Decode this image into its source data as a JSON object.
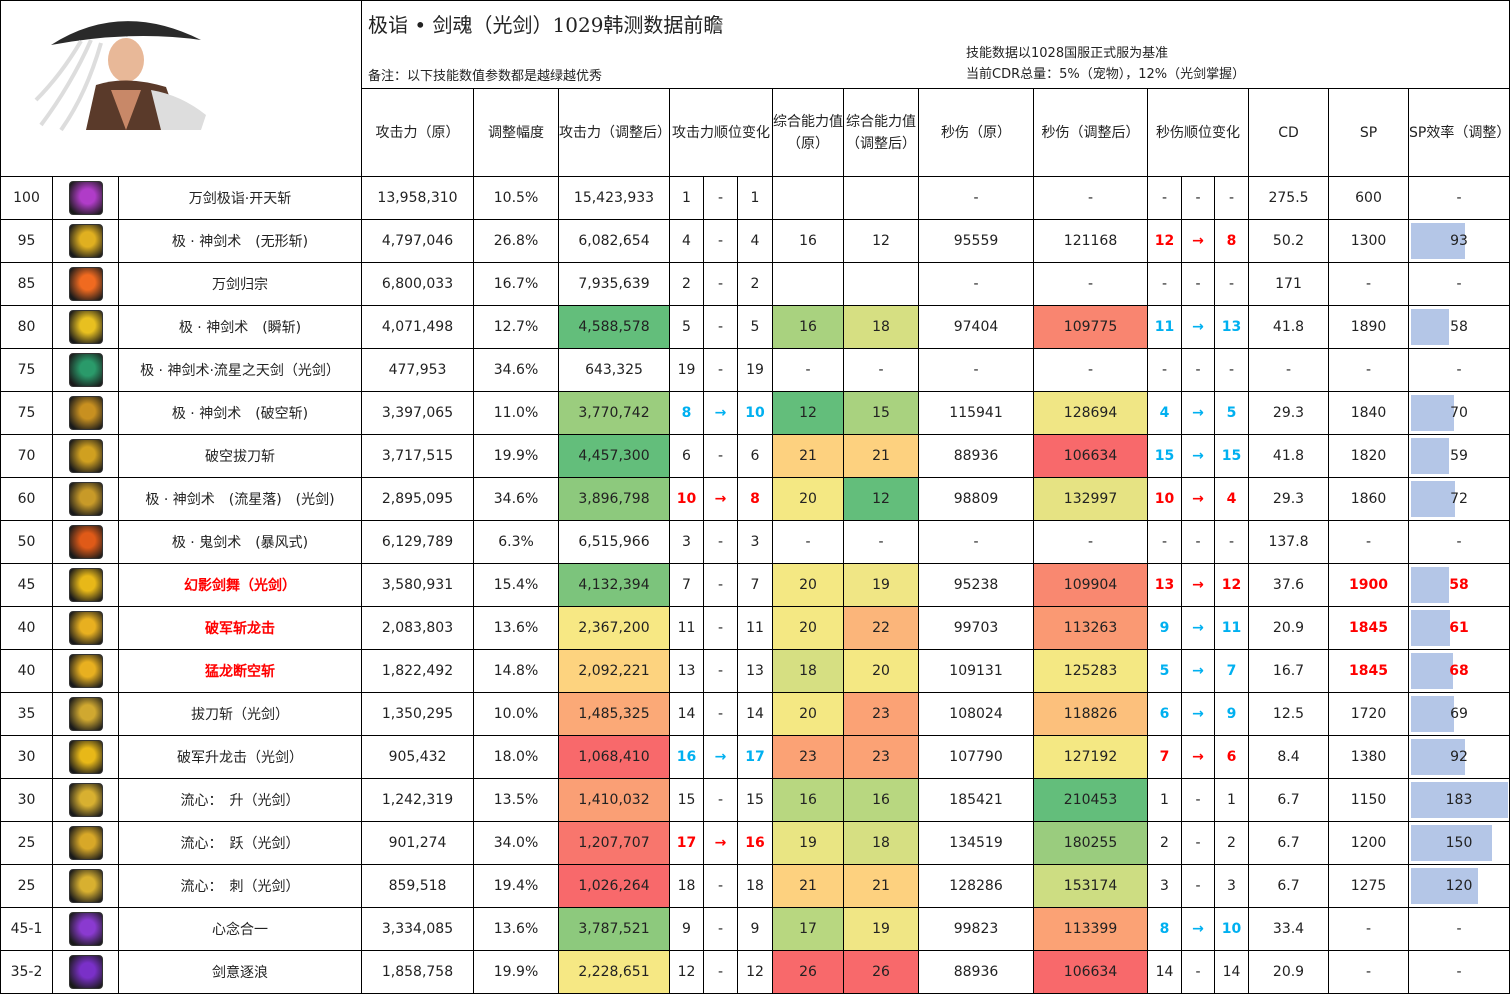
{
  "title": "极诣 • 剑魂（光剑）1029韩测数据前瞻",
  "note": "备注：以下技能数值参数都是越绿越优秀",
  "basis_line1": "技能数据以1028国服正式服为基准",
  "basis_line2": "当前CDR总量：5%（宠物），12%（光剑掌握）",
  "headers": {
    "atk": "攻击力（原）",
    "adj": "调整幅度",
    "atk2": "攻击力（调整后）",
    "rank": "攻击力顺位变化",
    "cap": "综合能力值（原）",
    "cap2": "综合能力值（调整后）",
    "dps": "秒伤（原）",
    "dps2": "秒伤（调整后）",
    "drank": "秒伤顺位变化",
    "cd": "CD",
    "sp": "SP",
    "eff": "SP效率（调整）"
  },
  "colors": {
    "rank_up": "#00b0f0",
    "rank_down": "#ff0000",
    "bar": "#b4c6e7"
  },
  "sp_eff_max": 183,
  "rows": [
    {
      "lv": "100",
      "icon": "skill-burst-icon",
      "ic": "#b03cc8",
      "name": "万剑极诣·开天斩",
      "nr": false,
      "atk": "13,958,310",
      "adj": "10.5%",
      "atk2": "15,423,933",
      "atk2_bg": "",
      "ra": "1",
      "rx": "-",
      "rb": "1",
      "rc": "",
      "cap": "",
      "cap_bg": "",
      "cap2": "",
      "cap2_bg": "",
      "dps": "-",
      "dps2": "-",
      "dps2_bg": "",
      "da": "-",
      "dx": "-",
      "db": "-",
      "dc": "",
      "cd": "275.5",
      "sp": "600",
      "spr": false,
      "eff": "-",
      "effv": null
    },
    {
      "lv": "95",
      "icon": "skill-slash-icon",
      "ic": "#e0b020",
      "name": "极 · 神剑术　(无形斩)",
      "nr": false,
      "atk": "4,797,046",
      "adj": "26.8%",
      "atk2": "6,082,654",
      "atk2_bg": "",
      "ra": "4",
      "rx": "-",
      "rb": "4",
      "rc": "",
      "cap": "16",
      "cap_bg": "",
      "cap2": "12",
      "cap2_bg": "",
      "dps": "95559",
      "dps2": "121168",
      "dps2_bg": "",
      "da": "12",
      "dx": "→",
      "db": "8",
      "dc": "red",
      "cd": "50.2",
      "sp": "1300",
      "spr": false,
      "eff": "93",
      "effv": 93
    },
    {
      "lv": "85",
      "icon": "skill-sword-rain-icon",
      "ic": "#f06a20",
      "name": "万剑归宗",
      "nr": false,
      "atk": "6,800,033",
      "adj": "16.7%",
      "atk2": "7,935,639",
      "atk2_bg": "",
      "ra": "2",
      "rx": "-",
      "rb": "2",
      "rc": "",
      "cap": "",
      "cap_bg": "",
      "cap2": "",
      "cap2_bg": "",
      "dps": "-",
      "dps2": "-",
      "dps2_bg": "",
      "da": "-",
      "dx": "-",
      "db": "-",
      "dc": "",
      "cd": "171",
      "sp": "-",
      "spr": false,
      "eff": "-",
      "effv": null
    },
    {
      "lv": "80",
      "icon": "skill-flash-icon",
      "ic": "#e8c020",
      "name": "极 · 神剑术　(瞬斩)",
      "nr": false,
      "atk": "4,071,498",
      "adj": "12.7%",
      "atk2": "4,588,578",
      "atk2_bg": "#63be7b",
      "ra": "5",
      "rx": "-",
      "rb": "5",
      "rc": "",
      "cap": "16",
      "cap_bg": "#a9d27f",
      "cap2": "18",
      "cap2_bg": "#d6df82",
      "dps": "97404",
      "dps2": "109775",
      "dps2_bg": "#f98570",
      "da": "11",
      "dx": "→",
      "db": "13",
      "dc": "blue",
      "cd": "41.8",
      "sp": "1890",
      "spr": false,
      "eff": "58",
      "effv": 58
    },
    {
      "lv": "75",
      "icon": "skill-meteor-sword-icon",
      "ic": "#2a9a6a",
      "name": "极 · 神剑术·流星之天剑（光剑）",
      "nr": false,
      "atk": "477,953",
      "adj": "34.6%",
      "atk2": "643,325",
      "atk2_bg": "",
      "ra": "19",
      "rx": "-",
      "rb": "19",
      "rc": "",
      "cap": "-",
      "cap_bg": "",
      "cap2": "-",
      "cap2_bg": "",
      "dps": "-",
      "dps2": "-",
      "dps2_bg": "",
      "da": "-",
      "dx": "-",
      "db": "-",
      "dc": "",
      "cd": "-",
      "sp": "-",
      "spr": false,
      "eff": "-",
      "effv": null
    },
    {
      "lv": "75",
      "icon": "skill-void-slash-icon",
      "ic": "#c89020",
      "name": "极 · 神剑术　(破空斩)",
      "nr": false,
      "atk": "3,397,065",
      "adj": "11.0%",
      "atk2": "3,770,742",
      "atk2_bg": "#9bcd7e",
      "ra": "8",
      "rx": "→",
      "rb": "10",
      "rc": "blue",
      "cap": "12",
      "cap_bg": "#63be7b",
      "cap2": "15",
      "cap2_bg": "#a9d27f",
      "dps": "115941",
      "dps2": "128694",
      "dps2_bg": "#f0e685",
      "da": "4",
      "dx": "→",
      "db": "5",
      "dc": "blue",
      "cd": "29.3",
      "sp": "1840",
      "spr": false,
      "eff": "70",
      "effv": 70
    },
    {
      "lv": "70",
      "icon": "skill-draw-slash-icon",
      "ic": "#d0a020",
      "name": "破空拔刀斩",
      "nr": false,
      "atk": "3,717,515",
      "adj": "19.9%",
      "atk2": "4,457,300",
      "atk2_bg": "#63be7b",
      "ra": "6",
      "rx": "-",
      "rb": "6",
      "rc": "",
      "cap": "21",
      "cap_bg": "#fdd17f",
      "cap2": "21",
      "cap2_bg": "#fdd17f",
      "dps": "88936",
      "dps2": "106634",
      "dps2_bg": "#f8696b",
      "da": "15",
      "dx": "→",
      "db": "15",
      "dc": "blue",
      "cd": "41.8",
      "sp": "1820",
      "spr": false,
      "eff": "59",
      "effv": 59
    },
    {
      "lv": "60",
      "icon": "skill-meteor-fall-icon",
      "ic": "#c89a28",
      "name": "极 · 神剑术　(流星落)　(光剑)",
      "nr": false,
      "atk": "2,895,095",
      "adj": "34.6%",
      "atk2": "3,896,798",
      "atk2_bg": "#8dc97d",
      "ra": "10",
      "rx": "→",
      "rb": "8",
      "rc": "red",
      "cap": "20",
      "cap_bg": "#f4e883",
      "cap2": "12",
      "cap2_bg": "#63be7b",
      "dps": "98809",
      "dps2": "132997",
      "dps2_bg": "#e6e383",
      "da": "10",
      "dx": "→",
      "db": "4",
      "dc": "red",
      "cd": "29.3",
      "sp": "1860",
      "spr": false,
      "eff": "72",
      "effv": 72
    },
    {
      "lv": "50",
      "icon": "skill-storm-icon",
      "ic": "#e05a18",
      "name": "极 · 鬼剑术　(暴风式)",
      "nr": false,
      "atk": "6,129,789",
      "adj": "6.3%",
      "atk2": "6,515,966",
      "atk2_bg": "",
      "ra": "3",
      "rx": "-",
      "rb": "3",
      "rc": "",
      "cap": "-",
      "cap_bg": "",
      "cap2": "-",
      "cap2_bg": "",
      "dps": "-",
      "dps2": "-",
      "dps2_bg": "",
      "da": "-",
      "dx": "-",
      "db": "-",
      "dc": "",
      "cd": "137.8",
      "sp": "-",
      "spr": false,
      "eff": "-",
      "effv": null
    },
    {
      "lv": "45",
      "icon": "skill-phantom-dance-icon",
      "ic": "#e8b818",
      "name": "幻影剑舞（光剑）",
      "nr": true,
      "atk": "3,580,931",
      "adj": "15.4%",
      "atk2": "4,132,394",
      "atk2_bg": "#7cc47c",
      "ra": "7",
      "rx": "-",
      "rb": "7",
      "rc": "",
      "cap": "20",
      "cap_bg": "#f4e883",
      "cap2": "19",
      "cap2_bg": "#f0e685",
      "dps": "95238",
      "dps2": "109904",
      "dps2_bg": "#f98870",
      "da": "13",
      "dx": "→",
      "db": "12",
      "dc": "red",
      "cd": "37.6",
      "sp": "1900",
      "spr": true,
      "eff": "58",
      "effv": 58
    },
    {
      "lv": "40",
      "icon": "skill-dragon-slash-icon",
      "ic": "#e8b020",
      "name": "破军斩龙击",
      "nr": true,
      "atk": "2,083,803",
      "adj": "13.6%",
      "atk2": "2,367,200",
      "atk2_bg": "#f7e884",
      "ra": "11",
      "rx": "-",
      "rb": "11",
      "rc": "",
      "cap": "20",
      "cap_bg": "#f4e883",
      "cap2": "22",
      "cap2_bg": "#fbb57a",
      "dps": "99703",
      "dps2": "113263",
      "dps2_bg": "#fa9973",
      "da": "9",
      "dx": "→",
      "db": "11",
      "dc": "blue",
      "cd": "20.9",
      "sp": "1845",
      "spr": true,
      "eff": "61",
      "effv": 61
    },
    {
      "lv": "40",
      "icon": "skill-dragon-sky-icon",
      "ic": "#e8b020",
      "name": "猛龙断空斩",
      "nr": true,
      "atk": "1,822,492",
      "adj": "14.8%",
      "atk2": "2,092,221",
      "atk2_bg": "#fdd37f",
      "ra": "13",
      "rx": "-",
      "rb": "13",
      "rc": "",
      "cap": "18",
      "cap_bg": "#d6df82",
      "cap2": "20",
      "cap2_bg": "#f4e883",
      "dps": "109131",
      "dps2": "125283",
      "dps2_bg": "#f4e883",
      "da": "5",
      "dx": "→",
      "db": "7",
      "dc": "blue",
      "cd": "16.7",
      "sp": "1845",
      "spr": true,
      "eff": "68",
      "effv": 68
    },
    {
      "lv": "35",
      "icon": "skill-quick-draw-icon",
      "ic": "#d0a830",
      "name": "拔刀斩（光剑）",
      "nr": false,
      "atk": "1,350,295",
      "adj": "10.0%",
      "atk2": "1,485,325",
      "atk2_bg": "#fba977",
      "ra": "14",
      "rx": "-",
      "rb": "14",
      "rc": "",
      "cap": "20",
      "cap_bg": "#f4e883",
      "cap2": "23",
      "cap2_bg": "#fba275",
      "dps": "108024",
      "dps2": "118826",
      "dps2_bg": "#fcc07c",
      "da": "6",
      "dx": "→",
      "db": "9",
      "dc": "blue",
      "cd": "12.5",
      "sp": "1720",
      "spr": false,
      "eff": "69",
      "effv": 69
    },
    {
      "lv": "30",
      "icon": "skill-rising-dragon-icon",
      "ic": "#e8b818",
      "name": "破军升龙击（光剑）",
      "nr": false,
      "atk": "905,432",
      "adj": "18.0%",
      "atk2": "1,068,410",
      "atk2_bg": "#f8696b",
      "ra": "16",
      "rx": "→",
      "rb": "17",
      "rc": "blue",
      "cap": "23",
      "cap_bg": "#fba275",
      "cap2": "23",
      "cap2_bg": "#fba275",
      "dps": "107790",
      "dps2": "127192",
      "dps2_bg": "#f4e883",
      "da": "7",
      "dx": "→",
      "db": "6",
      "dc": "red",
      "cd": "8.4",
      "sp": "1380",
      "spr": false,
      "eff": "92",
      "effv": 92
    },
    {
      "lv": "30",
      "icon": "skill-flow-rise-icon",
      "ic": "#d8b030",
      "name": "流心：　升（光剑）",
      "nr": false,
      "atk": "1,242,319",
      "adj": "13.5%",
      "atk2": "1,410,032",
      "atk2_bg": "#fa9f75",
      "ra": "15",
      "rx": "-",
      "rb": "15",
      "rc": "",
      "cap": "16",
      "cap_bg": "#b8d780",
      "cap2": "16",
      "cap2_bg": "#b8d780",
      "dps": "185421",
      "dps2": "210453",
      "dps2_bg": "#63be7b",
      "da": "1",
      "dx": "-",
      "db": "1",
      "dc": "",
      "cd": "6.7",
      "sp": "1150",
      "spr": false,
      "eff": "183",
      "effv": 183
    },
    {
      "lv": "25",
      "icon": "skill-flow-leap-icon",
      "ic": "#d8a828",
      "name": "流心：　跃（光剑）",
      "nr": false,
      "atk": "901,274",
      "adj": "34.0%",
      "atk2": "1,207,707",
      "atk2_bg": "#f8766d",
      "ra": "17",
      "rx": "→",
      "rb": "16",
      "rc": "red",
      "cap": "19",
      "cap_bg": "#e9e583",
      "cap2": "18",
      "cap2_bg": "#d6df82",
      "dps": "134519",
      "dps2": "180255",
      "dps2_bg": "#9acc7e",
      "da": "2",
      "dx": "-",
      "db": "2",
      "dc": "",
      "cd": "6.7",
      "sp": "1200",
      "spr": false,
      "eff": "150",
      "effv": 150
    },
    {
      "lv": "25",
      "icon": "skill-flow-thrust-icon",
      "ic": "#d8b030",
      "name": "流心：　刺（光剑）",
      "nr": false,
      "atk": "859,518",
      "adj": "19.4%",
      "atk2": "1,026,264",
      "atk2_bg": "#f8696b",
      "ra": "18",
      "rx": "-",
      "rb": "18",
      "rc": "",
      "cap": "21",
      "cap_bg": "#fdd17f",
      "cap2": "21",
      "cap2_bg": "#fdd17f",
      "dps": "128286",
      "dps2": "153174",
      "dps2_bg": "#cddd82",
      "da": "3",
      "dx": "-",
      "db": "3",
      "dc": "",
      "cd": "6.7",
      "sp": "1275",
      "spr": false,
      "eff": "120",
      "effv": 120
    },
    {
      "lv": "45-1",
      "icon": "skill-mind-unity-icon",
      "ic": "#8a3ad0",
      "name": "心念合一",
      "nr": false,
      "atk": "3,334,085",
      "adj": "13.6%",
      "atk2": "3,787,521",
      "atk2_bg": "#8dc97d",
      "ra": "9",
      "rx": "-",
      "rb": "9",
      "rc": "",
      "cap": "17",
      "cap_bg": "#b8d780",
      "cap2": "19",
      "cap2_bg": "#f0e685",
      "dps": "99823",
      "dps2": "113399",
      "dps2_bg": "#fba275",
      "da": "8",
      "dx": "→",
      "db": "10",
      "dc": "blue",
      "cd": "33.4",
      "sp": "-",
      "spr": false,
      "eff": "-",
      "effv": null
    },
    {
      "lv": "35-2",
      "icon": "skill-sword-wave-icon",
      "ic": "#7a30c8",
      "name": "剑意逐浪",
      "nr": false,
      "atk": "1,858,758",
      "adj": "19.9%",
      "atk2": "2,228,651",
      "atk2_bg": "#f6e884",
      "ra": "12",
      "rx": "-",
      "rb": "12",
      "rc": "",
      "cap": "26",
      "cap_bg": "#f8696b",
      "cap2": "26",
      "cap2_bg": "#f8696b",
      "dps": "88936",
      "dps2": "106634",
      "dps2_bg": "#f8696b",
      "da": "14",
      "dx": "-",
      "db": "14",
      "dc": "",
      "cd": "20.9",
      "sp": "-",
      "spr": false,
      "eff": "-",
      "effv": null
    }
  ]
}
